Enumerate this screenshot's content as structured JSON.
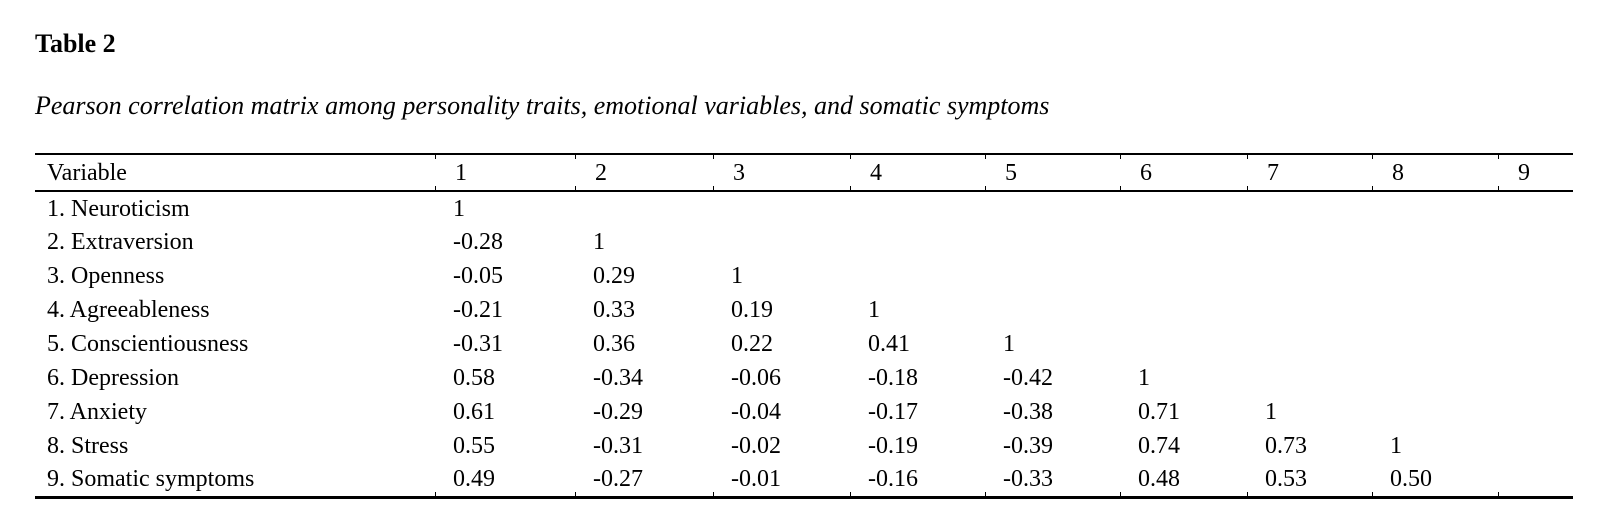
{
  "document": {
    "table_label": "Table 2",
    "caption": "Pearson correlation matrix among personality traits, emotional variables, and somatic symptoms"
  },
  "table": {
    "columns": [
      "Variable",
      "1",
      "2",
      "3",
      "4",
      "5",
      "6",
      "7",
      "8",
      "9"
    ],
    "rows": [
      {
        "variable": "1. Neuroticism",
        "values": [
          "1",
          "",
          "",
          "",
          "",
          "",
          "",
          "",
          ""
        ]
      },
      {
        "variable": "2. Extraversion",
        "values": [
          "-0.28",
          "1",
          "",
          "",
          "",
          "",
          "",
          "",
          ""
        ]
      },
      {
        "variable": "3. Openness",
        "values": [
          "-0.05",
          "0.29",
          "1",
          "",
          "",
          "",
          "",
          "",
          ""
        ]
      },
      {
        "variable": "4. Agreeableness",
        "values": [
          "-0.21",
          "0.33",
          "0.19",
          "1",
          "",
          "",
          "",
          "",
          ""
        ]
      },
      {
        "variable": "5. Conscientiousness",
        "values": [
          "-0.31",
          "0.36",
          "0.22",
          "0.41",
          "1",
          "",
          "",
          "",
          ""
        ]
      },
      {
        "variable": "6. Depression",
        "values": [
          "0.58",
          "-0.34",
          "-0.06",
          "-0.18",
          "-0.42",
          "1",
          "",
          "",
          ""
        ]
      },
      {
        "variable": "7. Anxiety",
        "values": [
          "0.61",
          "-0.29",
          "-0.04",
          "-0.17",
          "-0.38",
          "0.71",
          "1",
          "",
          ""
        ]
      },
      {
        "variable": "8. Stress",
        "values": [
          "0.55",
          "-0.31",
          "-0.02",
          "-0.19",
          "-0.39",
          "0.74",
          "0.73",
          "1",
          ""
        ]
      },
      {
        "variable": "9. Somatic symptoms",
        "values": [
          "0.49",
          "-0.27",
          "-0.01",
          "-0.16",
          "-0.33",
          "0.48",
          "0.53",
          "0.50",
          ""
        ]
      }
    ]
  },
  "colors": {
    "background": "#ffffff",
    "text": "#000000",
    "rule": "#000000"
  }
}
